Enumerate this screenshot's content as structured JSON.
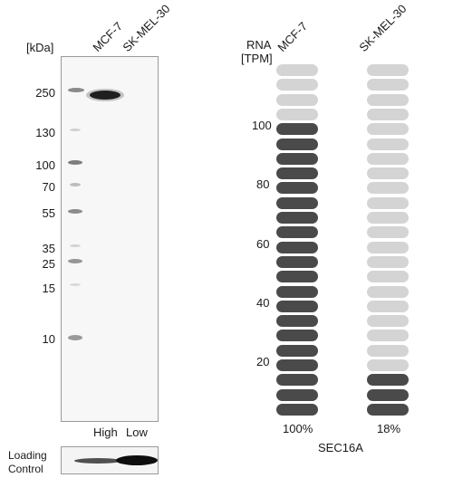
{
  "blot": {
    "unit_label": "[kDa]",
    "lanes": [
      "MCF-7",
      "SK-MEL-30"
    ],
    "markers": [
      "250",
      "130",
      "100",
      "70",
      "55",
      "35",
      "25",
      "15",
      "10"
    ],
    "expression": [
      "High",
      "Low"
    ],
    "loading_label_line1": "Loading",
    "loading_label_line2": "Control"
  },
  "rna": {
    "label_line1": "RNA",
    "label_line2": "[TPM]",
    "cell_lines": [
      "MCF-7",
      "SK-MEL-30"
    ],
    "axis_ticks": [
      "100",
      "80",
      "60",
      "40",
      "20"
    ],
    "percentages": [
      "100%",
      "18%"
    ],
    "gene": "SEC16A",
    "total_segments": 24,
    "filled_segments": [
      20,
      3
    ],
    "filled_color": "#4a4a4a",
    "empty_color": "#d4d4d4"
  }
}
